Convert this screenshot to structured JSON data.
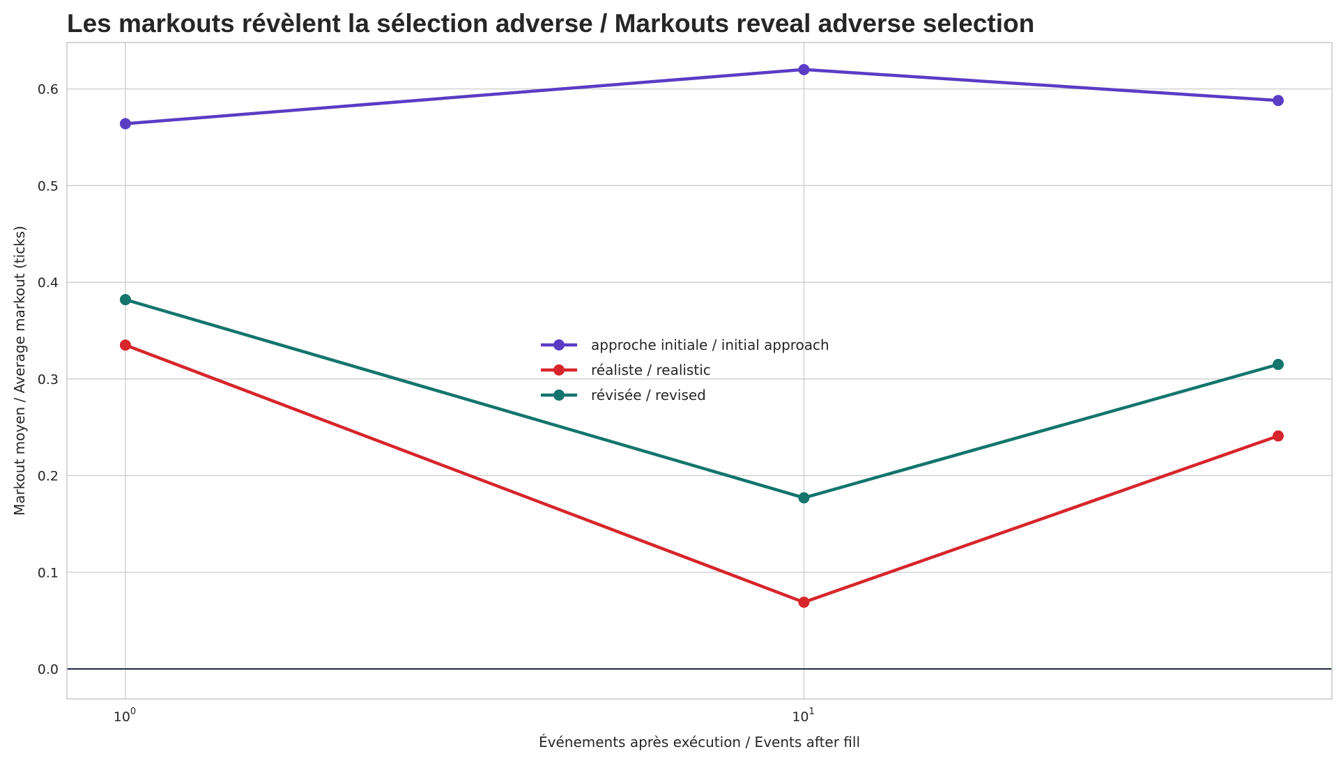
{
  "chart_data": {
    "type": "line",
    "title": "Les markouts révèlent la sélection adverse / Markouts reveal adverse selection",
    "xlabel": "Événements après exécution / Events after fill",
    "ylabel": "Markout moyen / Average markout (ticks)",
    "x_scale": "log",
    "x": [
      1,
      10,
      50
    ],
    "xlim": [
      0.82,
      60
    ],
    "ylim": [
      -0.031,
      0.648
    ],
    "yticks": [
      0.0,
      0.1,
      0.2,
      0.3,
      0.4,
      0.5,
      0.6
    ],
    "ytick_labels": [
      "0.0",
      "0.1",
      "0.2",
      "0.3",
      "0.4",
      "0.5",
      "0.6"
    ],
    "xticks": [
      1,
      10
    ],
    "xtick_labels": [
      {
        "base": "10",
        "exp": "0"
      },
      {
        "base": "10",
        "exp": "1"
      }
    ],
    "grid": true,
    "reference_line": {
      "y": 0,
      "color": "#1b2a44"
    },
    "legend_position": "center",
    "series": [
      {
        "name": "approche initiale / initial approach",
        "color": "#5a3cc5",
        "values": [
          0.564,
          0.62,
          0.588
        ]
      },
      {
        "name": "réaliste / realistic",
        "color": "#d6262b",
        "values": [
          0.335,
          0.069,
          0.241
        ]
      },
      {
        "name": "révisée / revised",
        "color": "#13756c",
        "values": [
          0.382,
          0.177,
          0.315
        ]
      }
    ]
  }
}
